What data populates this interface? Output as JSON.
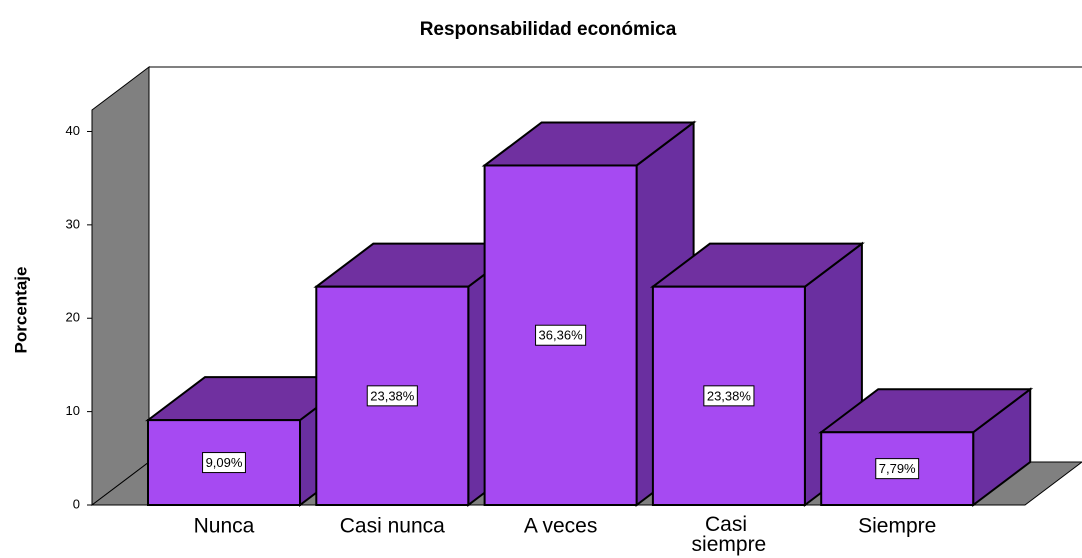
{
  "chart_data": {
    "type": "bar3d",
    "title": "Responsabilidad económica",
    "y_label": "Porcentaje",
    "categories": [
      "Nunca",
      "Casi nunca",
      "A veces",
      "Casi siempre",
      "Siempre"
    ],
    "values": [
      9.09,
      23.38,
      36.36,
      23.38,
      7.79
    ],
    "value_labels": [
      "9,09%",
      "23,38%",
      "36,36%",
      "23,38%",
      "7,79%"
    ],
    "color": "#a64af2",
    "ylim": [
      0,
      42.3
    ],
    "yticks": [
      0,
      10,
      20,
      30,
      40
    ]
  }
}
